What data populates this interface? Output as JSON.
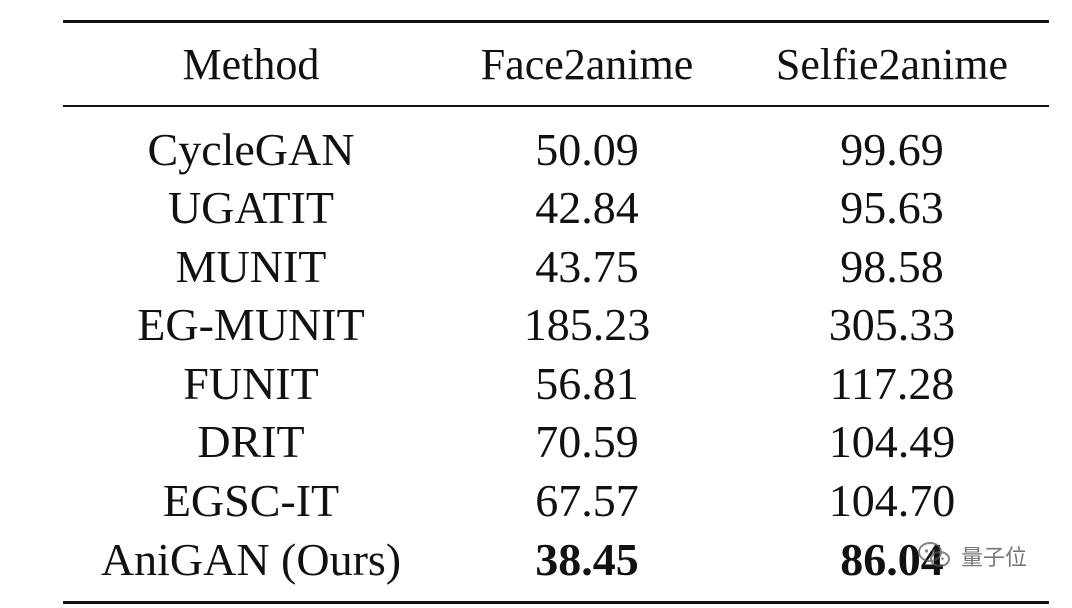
{
  "table": {
    "headers": {
      "method": "Method",
      "face2anime": "Face2anime",
      "selfie2anime": "Selfie2anime"
    },
    "rows": [
      {
        "method": "CycleGAN",
        "face2anime": "50.09",
        "selfie2anime": "99.69"
      },
      {
        "method": "UGATIT",
        "face2anime": "42.84",
        "selfie2anime": "95.63"
      },
      {
        "method": "MUNIT",
        "face2anime": "43.75",
        "selfie2anime": "98.58"
      },
      {
        "method": "EG-MUNIT",
        "face2anime": "185.23",
        "selfie2anime": "305.33"
      },
      {
        "method": "FUNIT",
        "face2anime": "56.81",
        "selfie2anime": "117.28"
      },
      {
        "method": "DRIT",
        "face2anime": "70.59",
        "selfie2anime": "104.49"
      },
      {
        "method": "EGSC-IT",
        "face2anime": "67.57",
        "selfie2anime": "104.70"
      },
      {
        "method": "AniGAN (Ours)",
        "face2anime": "38.45",
        "selfie2anime": "86.04"
      }
    ]
  },
  "watermark": {
    "icon": "wechat-icon",
    "text": "量子位"
  }
}
